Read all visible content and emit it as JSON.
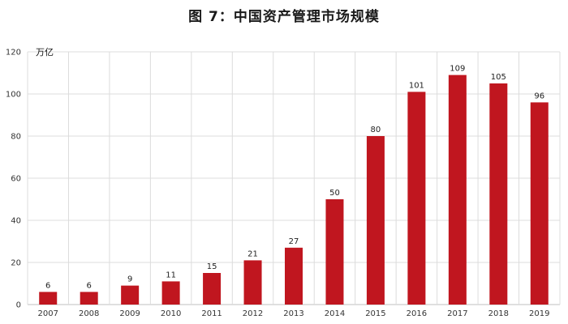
{
  "chart_data": {
    "type": "bar",
    "title": "图 7：中国资产管理市场规模",
    "ylabel": "万亿",
    "categories": [
      "2007",
      "2008",
      "2009",
      "2010",
      "2011",
      "2012",
      "2013",
      "2014",
      "2015",
      "2016",
      "2017",
      "2018",
      "2019"
    ],
    "values": [
      6,
      6,
      9,
      11,
      15,
      21,
      27,
      50,
      80,
      101,
      109,
      105,
      96
    ],
    "ylim": [
      0,
      120
    ],
    "yticks": [
      0,
      20,
      40,
      60,
      80,
      100,
      120
    ],
    "grid": true,
    "bar_color": "#c0161f"
  }
}
